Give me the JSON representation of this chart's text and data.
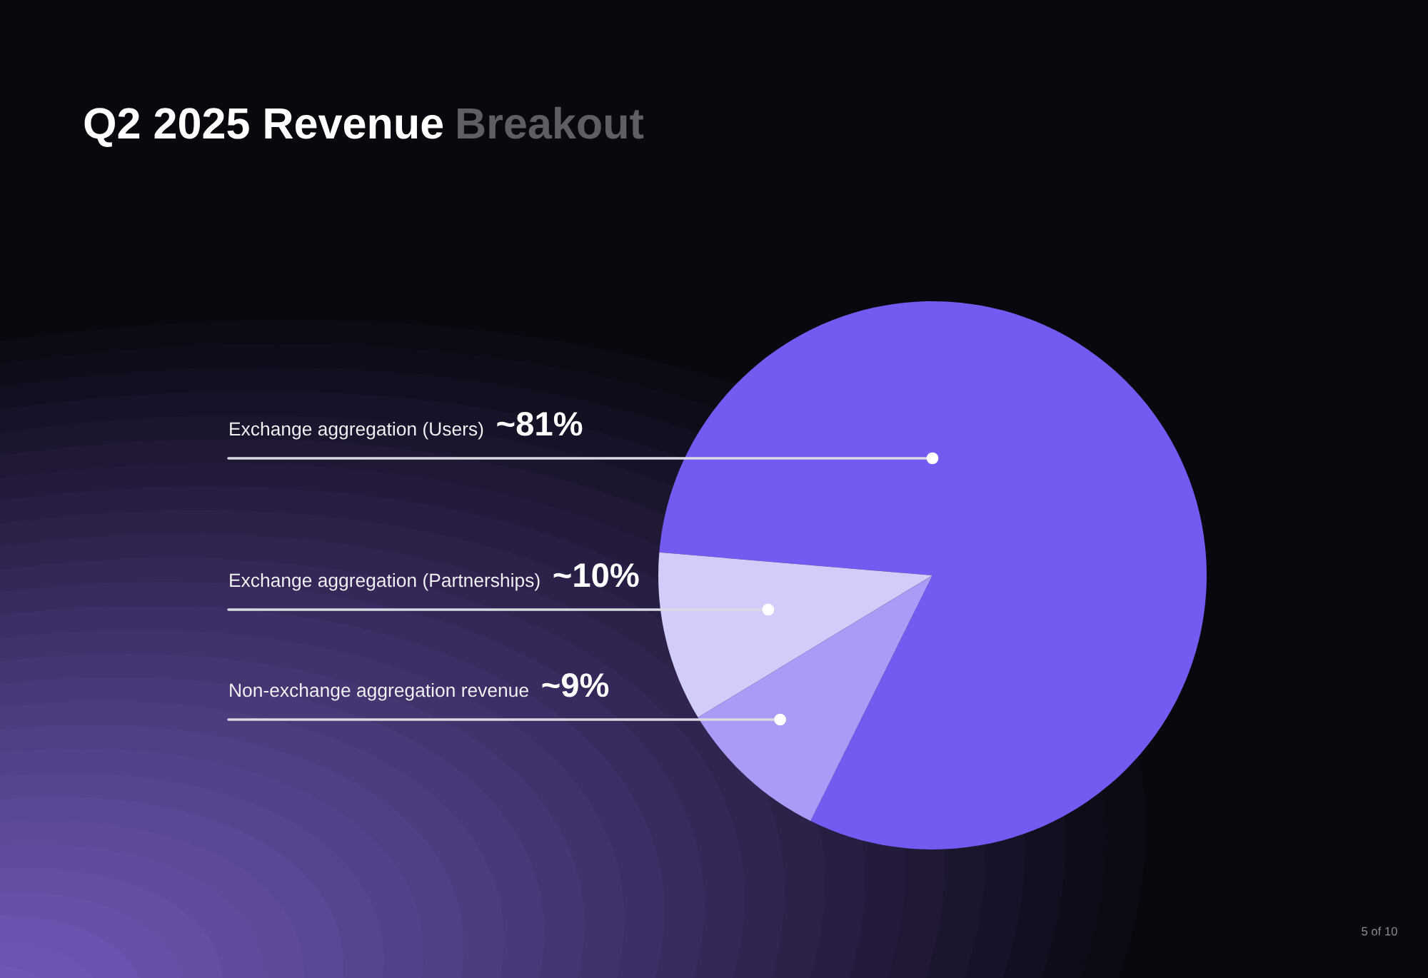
{
  "chart_data": {
    "type": "pie",
    "title": "Q2 2025 Revenue Breakout",
    "categories": [
      "Exchange aggregation (Users)",
      "Exchange aggregation (Partnerships)",
      "Non-exchange aggregation revenue"
    ],
    "values": [
      81,
      10,
      9
    ],
    "colors": [
      "#735bf2",
      "#d2ccfb",
      "#a99bf6"
    ],
    "value_labels": [
      "~81%",
      "~10%",
      "~9%"
    ],
    "annotations": [
      "5 of 10"
    ]
  }
}
